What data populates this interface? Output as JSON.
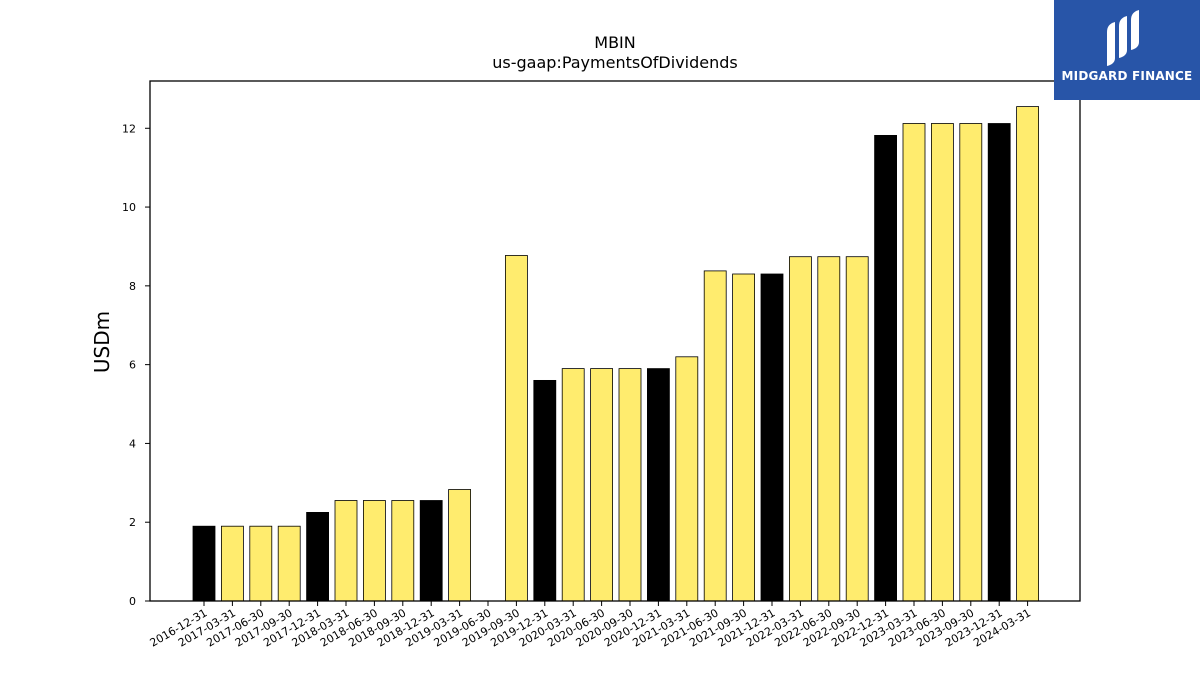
{
  "chart_data": {
    "type": "bar",
    "title": "MBIN",
    "subtitle": "us-gaap:PaymentsOfDividends",
    "ylabel": "USDm",
    "xlabel": "",
    "ylim": [
      0,
      13.2
    ],
    "yticks": [
      0,
      2,
      4,
      6,
      8,
      10,
      12
    ],
    "grid": false,
    "categories": [
      "2016-12-31",
      "2017-03-31",
      "2017-06-30",
      "2017-09-30",
      "2017-12-31",
      "2018-03-31",
      "2018-06-30",
      "2018-09-30",
      "2018-12-31",
      "2019-03-31",
      "2019-06-30",
      "2019-09-30",
      "2019-12-31",
      "2020-03-31",
      "2020-06-30",
      "2020-09-30",
      "2020-12-31",
      "2021-03-31",
      "2021-06-30",
      "2021-09-30",
      "2021-12-31",
      "2022-03-31",
      "2022-06-30",
      "2022-09-30",
      "2022-12-31",
      "2023-03-31",
      "2023-06-30",
      "2023-09-30",
      "2023-12-31",
      "2024-03-31"
    ],
    "values": [
      1.9,
      1.9,
      1.9,
      1.9,
      2.25,
      2.55,
      2.55,
      2.55,
      2.55,
      2.83,
      null,
      8.77,
      5.6,
      5.9,
      5.9,
      5.9,
      5.9,
      6.2,
      8.38,
      8.3,
      8.3,
      8.74,
      8.74,
      8.74,
      11.82,
      12.12,
      12.12,
      12.12,
      12.12,
      12.55
    ],
    "bar_kind": [
      "annual",
      "quarter",
      "quarter",
      "quarter",
      "annual",
      "quarter",
      "quarter",
      "quarter",
      "annual",
      "quarter",
      "quarter",
      "quarter",
      "annual",
      "quarter",
      "quarter",
      "quarter",
      "annual",
      "quarter",
      "quarter",
      "quarter",
      "annual",
      "quarter",
      "quarter",
      "quarter",
      "annual",
      "quarter",
      "quarter",
      "quarter",
      "annual",
      "quarter"
    ],
    "colors": {
      "annual": "#000000",
      "quarter": "#ffec6e",
      "edge": "#000000"
    }
  },
  "logo": {
    "text": "MIDGARD FINANCE",
    "background": "#2855a8"
  }
}
